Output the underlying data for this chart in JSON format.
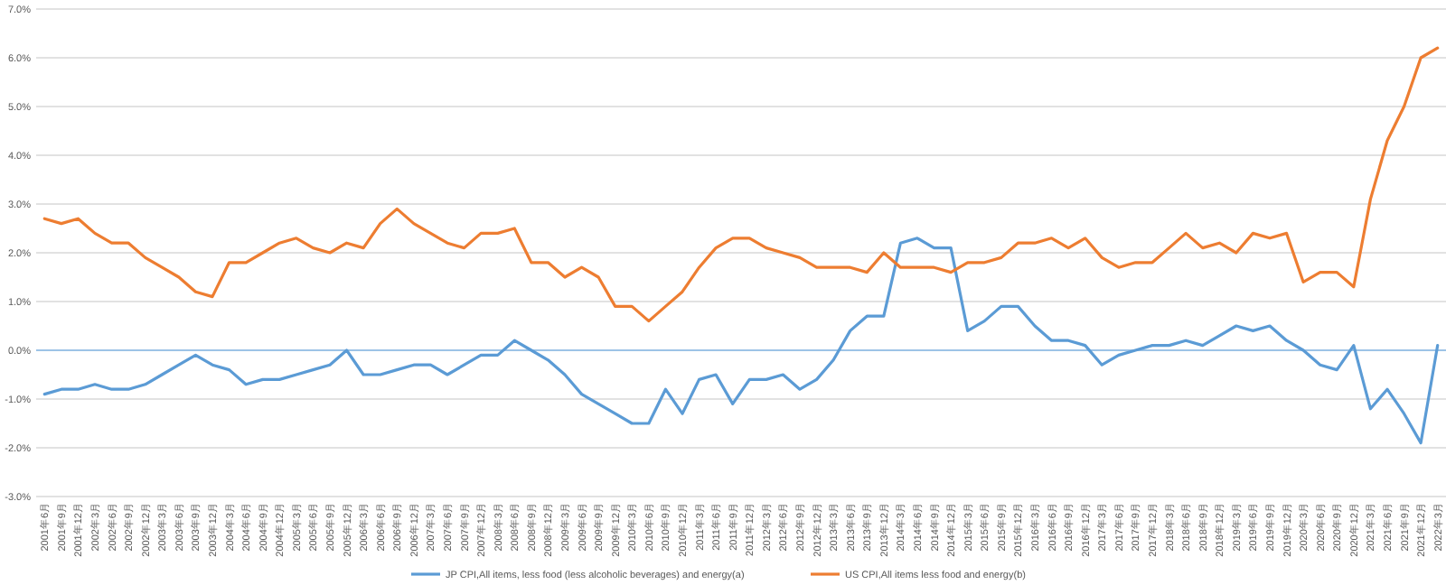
{
  "chart_data": {
    "type": "line",
    "categories": [
      "2001年6月",
      "2001年9月",
      "2001年12月",
      "2002年3月",
      "2002年6月",
      "2002年9月",
      "2002年12月",
      "2003年3月",
      "2003年6月",
      "2003年9月",
      "2003年12月",
      "2004年3月",
      "2004年6月",
      "2004年9月",
      "2004年12月",
      "2005年3月",
      "2005年6月",
      "2005年9月",
      "2005年12月",
      "2006年3月",
      "2006年6月",
      "2006年9月",
      "2006年12月",
      "2007年3月",
      "2007年6月",
      "2007年9月",
      "2007年12月",
      "2008年3月",
      "2008年6月",
      "2008年9月",
      "2008年12月",
      "2009年3月",
      "2009年6月",
      "2009年9月",
      "2009年12月",
      "2010年3月",
      "2010年6月",
      "2010年9月",
      "2010年12月",
      "2011年3月",
      "2011年6月",
      "2011年9月",
      "2011年12月",
      "2012年3月",
      "2012年6月",
      "2012年9月",
      "2012年12月",
      "2013年3月",
      "2013年6月",
      "2013年9月",
      "2013年12月",
      "2014年3月",
      "2014年6月",
      "2014年9月",
      "2014年12月",
      "2015年3月",
      "2015年6月",
      "2015年9月",
      "2015年12月",
      "2016年3月",
      "2016年6月",
      "2016年9月",
      "2016年12月",
      "2017年3月",
      "2017年6月",
      "2017年9月",
      "2017年12月",
      "2018年3月",
      "2018年6月",
      "2018年9月",
      "2018年12月",
      "2019年3月",
      "2019年6月",
      "2019年9月",
      "2019年12月",
      "2020年3月",
      "2020年6月",
      "2020年9月",
      "2020年12月",
      "2021年3月",
      "2021年6月",
      "2021年9月",
      "2021年12月",
      "2022年3月"
    ],
    "series": [
      {
        "name": "JP CPI,All items, less food (less alcoholic beverages) and energy(a)",
        "color": "#5b9bd5",
        "values": [
          -0.9,
          -0.8,
          -0.8,
          -0.7,
          -0.8,
          -0.8,
          -0.7,
          -0.5,
          -0.3,
          -0.1,
          -0.3,
          -0.4,
          -0.7,
          -0.6,
          -0.6,
          -0.5,
          -0.4,
          -0.3,
          0.0,
          -0.5,
          -0.5,
          -0.4,
          -0.3,
          -0.3,
          -0.5,
          -0.3,
          -0.1,
          -0.1,
          0.2,
          0.0,
          -0.2,
          -0.5,
          -0.9,
          -1.1,
          -1.3,
          -1.5,
          -1.5,
          -0.8,
          -1.3,
          -0.6,
          -0.5,
          -1.1,
          -0.6,
          -0.6,
          -0.5,
          -0.8,
          -0.6,
          -0.2,
          0.4,
          0.7,
          0.7,
          2.2,
          2.3,
          2.1,
          2.1,
          0.4,
          0.6,
          0.9,
          0.9,
          0.5,
          0.2,
          0.2,
          0.1,
          -0.3,
          -0.1,
          0.0,
          0.1,
          0.1,
          0.2,
          0.1,
          0.3,
          0.5,
          0.4,
          0.5,
          0.2,
          0.0,
          -0.3,
          -0.4,
          0.1,
          -1.2,
          -0.8,
          -1.3,
          -1.9,
          0.1
        ]
      },
      {
        "name": "US CPI,All items less food and energy(b)",
        "color": "#ed7d31",
        "values": [
          2.7,
          2.6,
          2.7,
          2.4,
          2.2,
          2.2,
          1.9,
          1.7,
          1.5,
          1.2,
          1.1,
          1.8,
          1.8,
          2.0,
          2.2,
          2.3,
          2.1,
          2.0,
          2.2,
          2.1,
          2.6,
          2.9,
          2.6,
          2.4,
          2.2,
          2.1,
          2.4,
          2.4,
          2.5,
          1.8,
          1.8,
          1.5,
          1.7,
          1.5,
          0.9,
          0.9,
          0.6,
          0.9,
          1.2,
          1.7,
          2.1,
          2.3,
          2.3,
          2.1,
          2.0,
          1.9,
          1.7,
          1.7,
          1.7,
          1.6,
          2.0,
          1.7,
          1.7,
          1.7,
          1.6,
          1.8,
          1.8,
          1.9,
          2.2,
          2.2,
          2.3,
          2.1,
          2.3,
          1.9,
          1.7,
          1.8,
          1.8,
          2.1,
          2.4,
          2.1,
          2.2,
          2.0,
          2.4,
          2.3,
          2.4,
          1.4,
          1.6,
          1.6,
          1.3,
          3.1,
          4.3,
          5.0,
          6.0,
          6.2
        ]
      }
    ],
    "ylim": [
      -3,
      7
    ],
    "yticks": [
      {
        "value": -3,
        "label": "-3.0%"
      },
      {
        "value": -2,
        "label": "-2.0%"
      },
      {
        "value": -1,
        "label": "-1.0%"
      },
      {
        "value": 0,
        "label": "0.0%"
      },
      {
        "value": 1,
        "label": "1.0%"
      },
      {
        "value": 2,
        "label": "2.0%"
      },
      {
        "value": 3,
        "label": "3.0%"
      },
      {
        "value": 4,
        "label": "4.0%"
      },
      {
        "value": 5,
        "label": "5.0%"
      },
      {
        "value": 6,
        "label": "6.0%"
      },
      {
        "value": 7,
        "label": "7.0%"
      }
    ],
    "ref_lines": [
      {
        "axis": "y",
        "value": 0,
        "color": "#9dc3e6"
      }
    ],
    "grid": "y",
    "legend": "bottom"
  }
}
